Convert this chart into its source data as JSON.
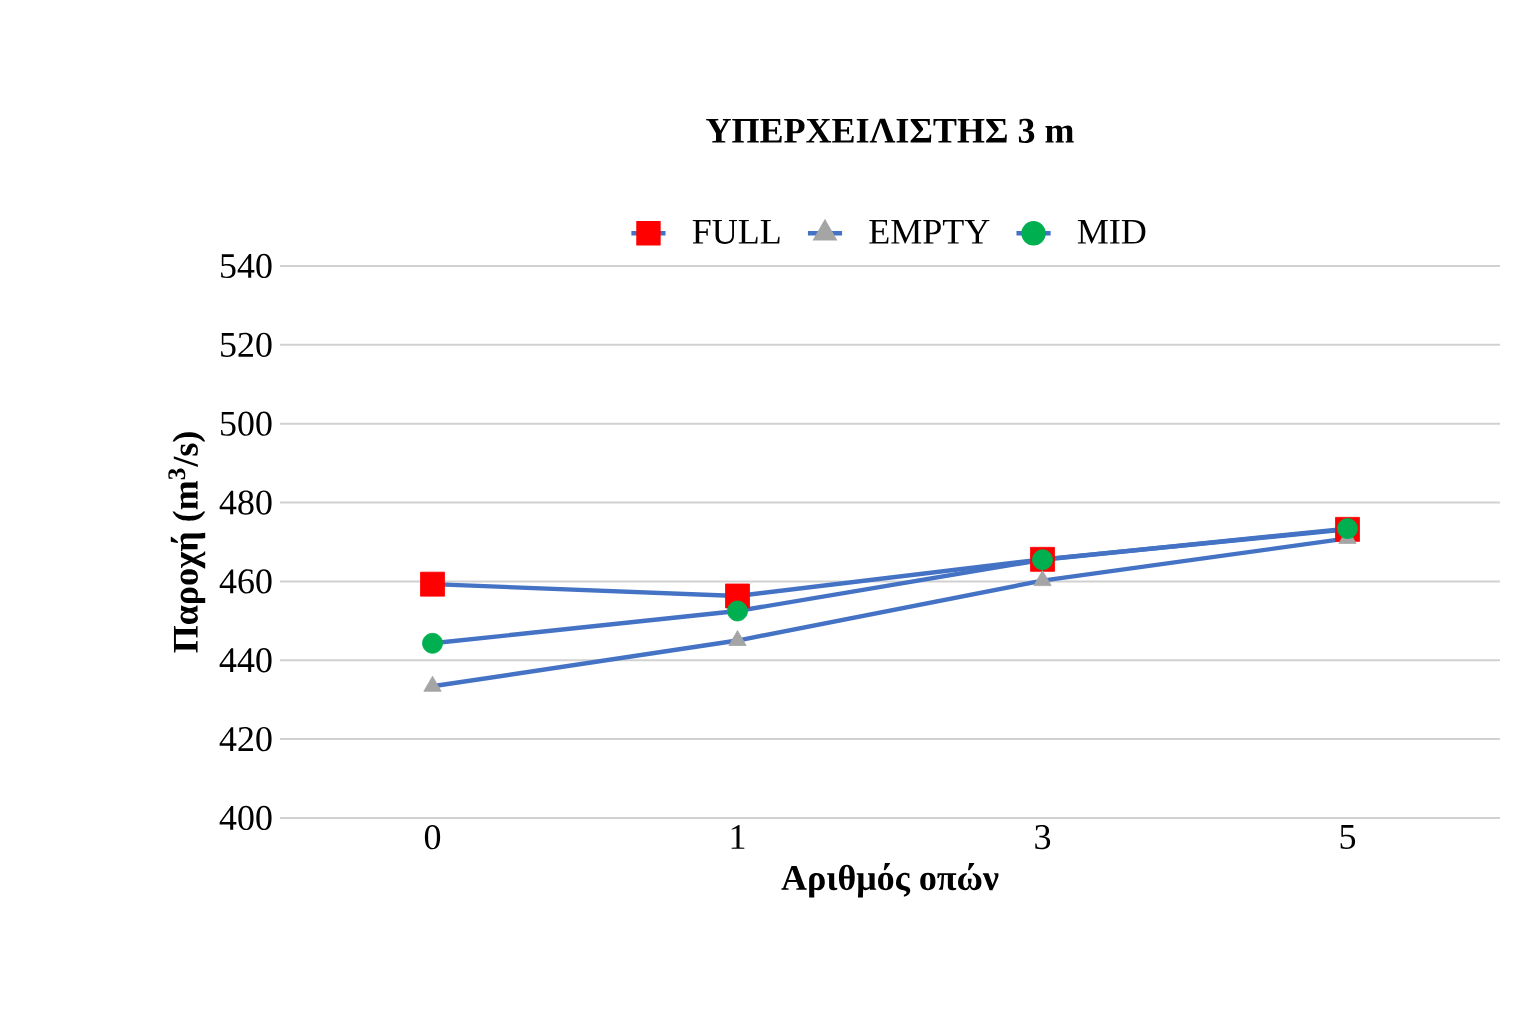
{
  "chart_data": {
    "type": "line",
    "title": "ΥΠΕΡΧΕΙΛΙΣΤΗΣ  3 m",
    "xlabel": "Αριθμός οπών",
    "ylabel": "Παροχή (m$^{3}$/s)",
    "categories": [
      "0",
      "1",
      "3",
      "5"
    ],
    "series": [
      {
        "name": "FULL",
        "color": "#4472c4",
        "colors": [
          "#ff0000",
          "#ff0000",
          "#ff0000",
          "#ff0000"
        ],
        "marker": "square",
        "values": [
          459.3,
          456.3,
          465.6,
          473.2
        ]
      },
      {
        "name": "EMPTY",
        "color": "#4472c4",
        "colors": [
          "#a5a5a5",
          "#a5a5a5",
          "#a5a5a5",
          "#a5a5a5"
        ],
        "marker": "triangle",
        "values": [
          433.4,
          445.0,
          460.2,
          470.9
        ]
      },
      {
        "name": "MID",
        "color": "#4472c4",
        "colors": [
          "#00b050",
          "#00b050",
          "#00b050",
          "#00b050"
        ],
        "marker": "circle",
        "values": [
          444.3,
          452.5,
          465.5,
          473.4
        ]
      }
    ],
    "ylim": [
      400,
      540
    ],
    "yticks": [
      400,
      420,
      440,
      460,
      480,
      500,
      520,
      540
    ],
    "grid": "y",
    "legend": "top",
    "line_style": "solid"
  }
}
